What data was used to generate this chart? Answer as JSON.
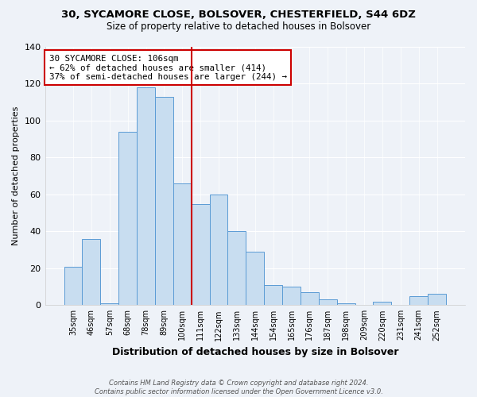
{
  "title": "30, SYCAMORE CLOSE, BOLSOVER, CHESTERFIELD, S44 6DZ",
  "subtitle": "Size of property relative to detached houses in Bolsover",
  "xlabel": "Distribution of detached houses by size in Bolsover",
  "ylabel": "Number of detached properties",
  "bar_labels": [
    "35sqm",
    "46sqm",
    "57sqm",
    "68sqm",
    "78sqm",
    "89sqm",
    "100sqm",
    "111sqm",
    "122sqm",
    "133sqm",
    "144sqm",
    "154sqm",
    "165sqm",
    "176sqm",
    "187sqm",
    "198sqm",
    "209sqm",
    "220sqm",
    "231sqm",
    "241sqm",
    "252sqm"
  ],
  "bar_values": [
    21,
    36,
    1,
    94,
    118,
    113,
    66,
    55,
    60,
    40,
    29,
    11,
    10,
    7,
    3,
    1,
    0,
    2,
    0,
    5,
    6
  ],
  "bar_color": "#c8ddf0",
  "bar_edge_color": "#5b9bd5",
  "vline_color": "#cc0000",
  "vline_position": 6.5,
  "annotation_text": "30 SYCAMORE CLOSE: 106sqm\n← 62% of detached houses are smaller (414)\n37% of semi-detached houses are larger (244) →",
  "annotation_box_color": "#ffffff",
  "annotation_box_edge_color": "#cc0000",
  "ylim": [
    0,
    140
  ],
  "yticks": [
    0,
    20,
    40,
    60,
    80,
    100,
    120,
    140
  ],
  "footer_line1": "Contains HM Land Registry data © Crown copyright and database right 2024.",
  "footer_line2": "Contains public sector information licensed under the Open Government Licence v3.0.",
  "bg_color": "#eef2f8"
}
